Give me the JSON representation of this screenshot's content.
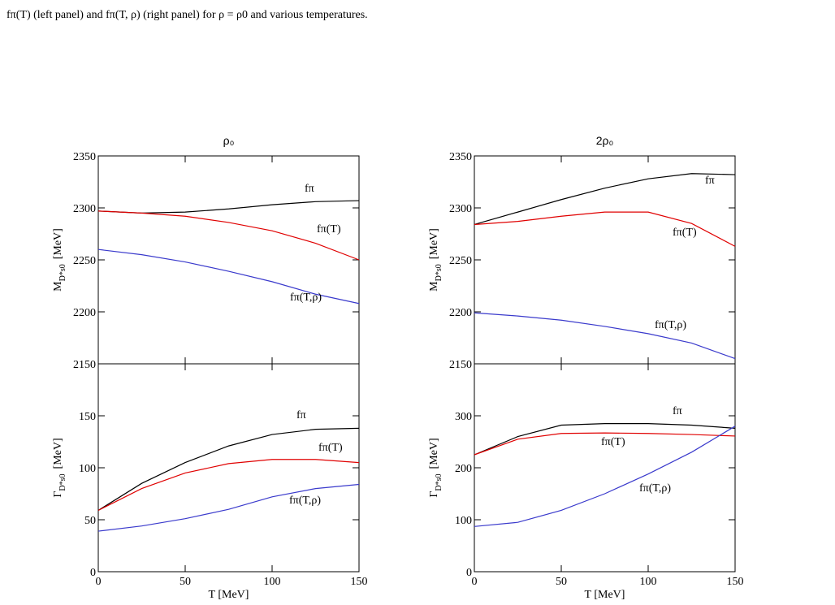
{
  "caption": "fπ(T) (left panel) and fπ(T, ρ) (right panel) for ρ = ρ0 and various temperatures.",
  "chart_data": [
    {
      "type": "line",
      "title": "ρ₀",
      "y_label": {
        "symbol": "M",
        "subscript": "D*s0",
        "unit": "[MeV]"
      },
      "x": [
        0,
        25,
        50,
        75,
        100,
        125,
        150
      ],
      "xlim": [
        0,
        150
      ],
      "xticks": [
        0,
        50,
        100,
        150
      ],
      "ylim": [
        2150,
        2350
      ],
      "yticks": [
        2150,
        2200,
        2250,
        2300,
        2350
      ],
      "series": [
        {
          "name": "fπ",
          "color": "#000000",
          "values": [
            2297,
            2295,
            2296,
            2299,
            2303,
            2306,
            2307
          ]
        },
        {
          "name": "fπ(T)",
          "color": "#e00000",
          "values": [
            2297,
            2295,
            2292,
            2286,
            2278,
            2266,
            2250
          ]
        },
        {
          "name": "fπ(T,ρ)",
          "color": "#3a3acc",
          "values": [
            2260,
            2255,
            2248,
            2239,
            2229,
            2217,
            2208
          ]
        }
      ]
    },
    {
      "type": "line",
      "title": "2ρ₀",
      "y_label": {
        "symbol": "M",
        "subscript": "D*s0",
        "unit": "[MeV]"
      },
      "x": [
        0,
        25,
        50,
        75,
        100,
        125,
        150
      ],
      "xlim": [
        0,
        150
      ],
      "xticks": [
        0,
        50,
        100,
        150
      ],
      "ylim": [
        2150,
        2350
      ],
      "yticks": [
        2150,
        2200,
        2250,
        2300,
        2350
      ],
      "series": [
        {
          "name": "fπ",
          "color": "#000000",
          "values": [
            2284,
            2296,
            2308,
            2319,
            2328,
            2333,
            2332
          ]
        },
        {
          "name": "fπ(T)",
          "color": "#e00000",
          "values": [
            2284,
            2287,
            2292,
            2296,
            2296,
            2285,
            2263
          ]
        },
        {
          "name": "fπ(T,ρ)",
          "color": "#3a3acc",
          "values": [
            2199,
            2196,
            2192,
            2186,
            2179,
            2170,
            2155
          ]
        }
      ]
    },
    {
      "type": "line",
      "x_label": "T  [MeV]",
      "y_label": {
        "symbol": "Γ",
        "subscript": "D*s0",
        "unit": "[MeV]"
      },
      "x": [
        0,
        25,
        50,
        75,
        100,
        125,
        150
      ],
      "xlim": [
        0,
        150
      ],
      "xticks": [
        0,
        50,
        100,
        150
      ],
      "ylim": [
        0,
        200
      ],
      "yticks": [
        0,
        50,
        100,
        150
      ],
      "series": [
        {
          "name": "fπ",
          "color": "#000000",
          "values": [
            59,
            85,
            105,
            121,
            132,
            137,
            138
          ]
        },
        {
          "name": "fπ(T)",
          "color": "#e00000",
          "values": [
            59,
            80,
            95,
            104,
            108,
            108,
            105
          ]
        },
        {
          "name": "fπ(T,ρ)",
          "color": "#3a3acc",
          "values": [
            39,
            44,
            51,
            60,
            72,
            80,
            84
          ]
        }
      ]
    },
    {
      "type": "line",
      "x_label": "T  [MeV]",
      "y_label": {
        "symbol": "Γ",
        "subscript": "D*s0",
        "unit": "[MeV]"
      },
      "x": [
        0,
        25,
        50,
        75,
        100,
        125,
        150
      ],
      "xlim": [
        0,
        150
      ],
      "xticks": [
        0,
        50,
        100,
        150
      ],
      "ylim": [
        0,
        400
      ],
      "yticks": [
        0,
        100,
        200,
        300
      ],
      "series": [
        {
          "name": "fπ",
          "color": "#000000",
          "values": [
            225,
            260,
            282,
            285,
            285,
            282,
            276
          ]
        },
        {
          "name": "fπ(T)",
          "color": "#e00000",
          "values": [
            225,
            255,
            266,
            267,
            266,
            264,
            261
          ]
        },
        {
          "name": "fπ(T,ρ)",
          "color": "#3a3acc",
          "values": [
            87,
            95,
            118,
            150,
            188,
            230,
            280
          ]
        }
      ]
    }
  ]
}
